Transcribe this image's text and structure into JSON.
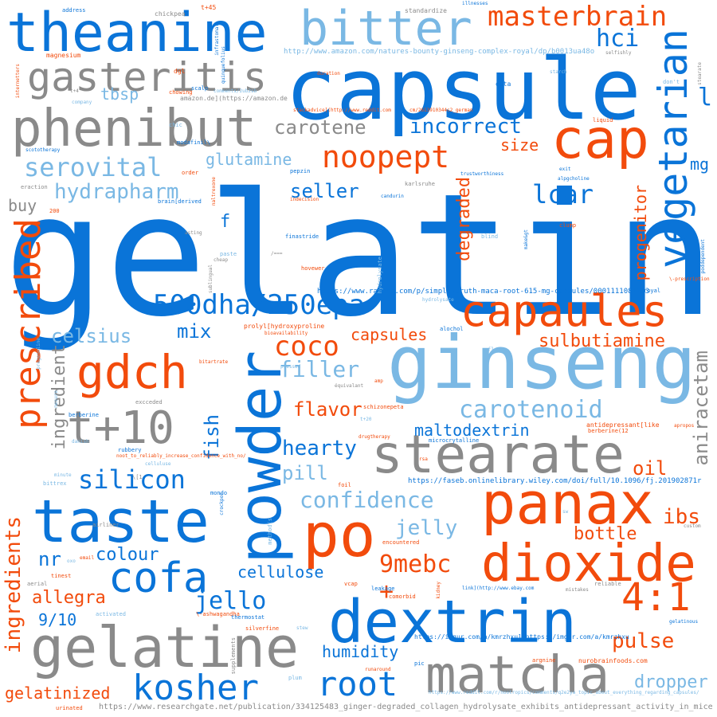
{
  "colors": {
    "blue": "#0a74d8",
    "light_blue": "#7ab8e4",
    "gray": "#8a8a8a",
    "orange_red": "#f24b0c",
    "background": "#ffffff"
  },
  "words": {
    "gelatin": "gelatin",
    "capsule": "capsule",
    "ginseng": "ginseng",
    "theanine": "theanine",
    "phenibut": "phenibut",
    "bitter": "bitter",
    "gasteritis": "gasteritis",
    "cap": "cap",
    "powder": "powder",
    "stearate": "stearate",
    "taste": "taste",
    "panax": "panax",
    "po": "po",
    "dioxide": "dioxide",
    "dextrin": "dextrin",
    "matcha": "matcha",
    "gelatine": "gelatine",
    "capaules": "capaules",
    "gdch": "gdch",
    "t10": "t+10",
    "cofa": "cofa",
    "kosher": "kosher",
    "root": "root",
    "ratio41": "4:1",
    "vegetarian": "vegetarian",
    "prescribed": "prescribed",
    "masterbrain": "masterbrain",
    "noopept": "noopept",
    "serovital": "serovital",
    "hydrapharm": "hydrapharm",
    "carotene": "carotene",
    "incorrect": "incorrect",
    "glutamine": "glutamine",
    "seller": "seller",
    "lcar": "lcar",
    "hci": "hci",
    "dha": "500dha/250epa",
    "coco": "coco",
    "celsius": "celsius",
    "mix": "mix",
    "capsules": "capsules",
    "sulbutiamine": "sulbutiamine",
    "filler": "filler",
    "carotenoid": "carotenoid",
    "flavor": "flavor",
    "maltodextrin": "maltodextrin",
    "hearty": "hearty",
    "silicon": "silicon",
    "pill": "pill",
    "confidence": "confidence",
    "jelly": "jelly",
    "colour": "colour",
    "nr": "nr",
    "mebc": "9mebc",
    "jello": "jello",
    "cellulose": "cellulose",
    "humidity": "humidity",
    "allegra": "allegra",
    "ratio910": "9/10",
    "gelatinized": "gelatinized",
    "ingredients": "ingredients",
    "ingredient": "ingredient",
    "fish": "fish",
    "oil": "oil",
    "ibs": "ibs",
    "bottle": "bottle",
    "pulse": "pulse",
    "dropper": "dropper",
    "aniracetam": "aniracetam",
    "degraded": "degraded",
    "progenitor": "progenitor",
    "size": "size",
    "buy": "buy",
    "tbsp": "tbsp",
    "mg": "mg",
    "l": "l",
    "f": "f",
    "plus": "+",
    "url_amazon": "http://www.amazon.com/natures-bounty-ginseng-complex-royal/dp/b0013ua48o",
    "url_ralphs": "https://www.ralphs.com/p/simple-truth-maca-root-615-mg-capsules/0001111081293",
    "url_faseb": "https://faseb.onlinelibrary.wiley.com/doi/full/10.1096/fj.201902871r",
    "url_researchgate": "https://www.researchgate.net/publication/334125483_ginger-degraded_collagen_hydrolysate_exhibits_antidepressant_activity_in_mice",
    "url_imgur": "https://imgur.com/a/kmrzhxu](https://imgur.com/a/kmrzhxu",
    "url_reddit_rp": "https://www.reddit.com/r/nootropics/comments/q2e2ya_topic_about_everything_regarding_capsules/",
    "url_reddit_cm": "cm/2613910344c2_german",
    "url_stackadvice": "stackadvice](http://www.reddit.com",
    "url_ebay": "link](http://www.ebay.com",
    "amazon_de": "amazon.de](https://amazon.de",
    "comments": "comments/2ub2sb",
    "nurobrain": "nurobrainfoods.com",
    "address": "address",
    "chickpea": "chickpea",
    "t45": "t+45",
    "standardize": "standardize",
    "illnesses": "illnesses",
    "magnesium": "magnesium",
    "dgl": "dgl",
    "scalp": "scalp",
    "t4": "t+4",
    "company": "company",
    "chowing": "chowing",
    "duration": "duration",
    "osta": "osta",
    "starch": "starch",
    "dont": "don't",
    "selfishly": "selfishly",
    "liquid": "liquid",
    "chic": "chic",
    "scototherapy": "scototherapy",
    "modafinil": "modafinil\\",
    "order": "order",
    "pepzin": "pepzin",
    "trustworthiness": "trustworthiness",
    "alpgcholine": "alpgcholine",
    "eraction": "eraction",
    "karlsruhe": "karlsruhe",
    "candurin": "candurin",
    "num200": "200",
    "brain_derived": "brain[derived",
    "indecision": "indecision",
    "asting": "asting",
    "finastride": "finastride",
    "paste": "paste",
    "cheap": "cheap",
    "hydrolysate": "hydrolysate",
    "blind": "blind",
    "clump": "clump",
    "makeagt": "make&gt",
    "however": "hovewer",
    "sublingual": "sublingual",
    "prescription": "\\-prescription",
    "royal": "royal",
    "poddependent": "poddependent",
    "prolyl": "prolyl[hydroxyproline",
    "bioavailability": "bioavailability",
    "alochol": "alochol",
    "bitartrate": "bitartrate",
    "pressed": "pressed",
    "flour": "flour",
    "equivalant": "équivalant",
    "amp": "amp",
    "pregenoline": "pregenoline",
    "mesure": "mesure",
    "exceeded": "excceded",
    "berberine": "berberine",
    "schizonepeta": "schizonepeta",
    "t20": "t+20",
    "antidepressant_like": "antidepressant[like",
    "berberine12": "berberine(12",
    "apropos": "apropos",
    "drugtherapy": "drugtherapy",
    "microcrytalline": "microcrytalline",
    "danish": "danish",
    "rubbery": "rubbery",
    "noot_link": "noot_to_reliably_increase_confidence_with_no/",
    "cellulose_small": "celluluse",
    "minute": "minute",
    "bittrex": "bittrex",
    "rsa": "rsa",
    "foil": "foil",
    "mondo": "mondo",
    "crockpot": "crockpot",
    "methods": "method(s",
    "airliner": "airliner",
    "custom": "custom",
    "encountered": "encountered",
    "oxo": "oxo",
    "email": "email",
    "tinest": "tinest",
    "aerial": "aerial",
    "ashwagandha": "\\-ashwagandha",
    "vcap": "vcap",
    "leakage": "leakage",
    "comorbid": "comorbid",
    "kidney": "kidney",
    "mistakes": "mistakes",
    "reliable": "reliable",
    "activated": "activated",
    "thermostat": "thermostat",
    "silverfine": "silverfine",
    "stew": "stew",
    "supplements": "supplements",
    "gelatinous": "gelatinous",
    "argnine": "argnine",
    "runaround": "runaround",
    "pic": "pic",
    "plum": "plum",
    "urinated": "urinated",
    "quinquefolius": "quinquefolius",
    "infrastomal": "infrastomal",
    "internetters": "internetters",
    "naltrexone": "naltrexone",
    "spacious": "stearate",
    "exit": "exit",
    "abbr": "/===",
    "sw": "sw",
    "bracket": "\\[1"
  }
}
